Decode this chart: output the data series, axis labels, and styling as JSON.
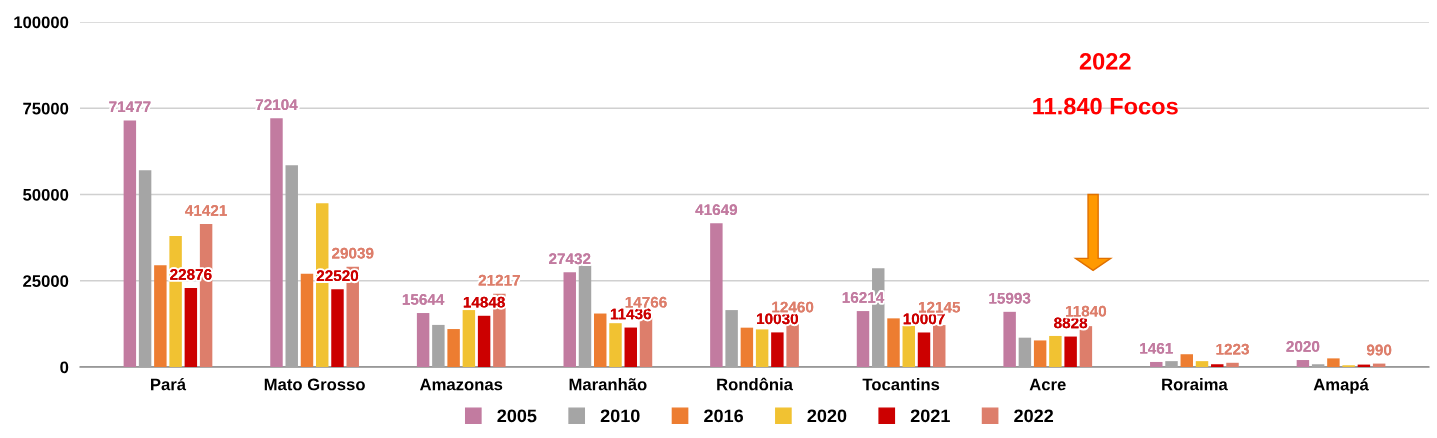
{
  "chart_data": {
    "type": "bar",
    "categories": [
      "Pará",
      "Mato Grosso",
      "Amazonas",
      "Maranhão",
      "Rondônia",
      "Tocantins",
      "Acre",
      "Roraima",
      "Amapá"
    ],
    "series": [
      {
        "name": "2005",
        "color": "#c27ba0",
        "values": [
          71477,
          72104,
          15644,
          27432,
          41649,
          16214,
          15993,
          1461,
          2020
        ],
        "value_labels": [
          "71477",
          "72104",
          "15644",
          "27432",
          "41649",
          "16214",
          "15993",
          "1461",
          "2020"
        ]
      },
      {
        "name": "2010",
        "color": "#a5a5a5",
        "values": [
          57000,
          58500,
          12200,
          29500,
          16500,
          28600,
          8500,
          1700,
          800
        ]
      },
      {
        "name": "2016",
        "color": "#ed7d31",
        "values": [
          29500,
          27000,
          11000,
          15500,
          11400,
          14100,
          7700,
          3700,
          2500
        ]
      },
      {
        "name": "2020",
        "color": "#f1c232",
        "values": [
          38000,
          47500,
          16500,
          12700,
          10900,
          11900,
          9000,
          1700,
          500
        ]
      },
      {
        "name": "2021",
        "color": "#cc0000",
        "values": [
          22876,
          22520,
          14848,
          11436,
          10030,
          10007,
          8828,
          800,
          700
        ],
        "value_labels": [
          "22876",
          "22520",
          "14848",
          "11436",
          "10030",
          "10007",
          "8828",
          null,
          null
        ]
      },
      {
        "name": "2022",
        "color": "#dd7e6b",
        "values": [
          41421,
          29039,
          21217,
          14766,
          12460,
          12145,
          11840,
          1223,
          990
        ],
        "value_labels": [
          "41421",
          "29039",
          "21217",
          "14766",
          "12460",
          "12145",
          "11840",
          "1223",
          "990"
        ]
      }
    ],
    "ylim": [
      0,
      100000
    ],
    "yticks": [
      0,
      25000,
      50000,
      75000,
      100000
    ],
    "grid": "y",
    "legend": "bottom",
    "marker": "square",
    "annotations": [
      "2022",
      "11.840 Focos"
    ]
  }
}
